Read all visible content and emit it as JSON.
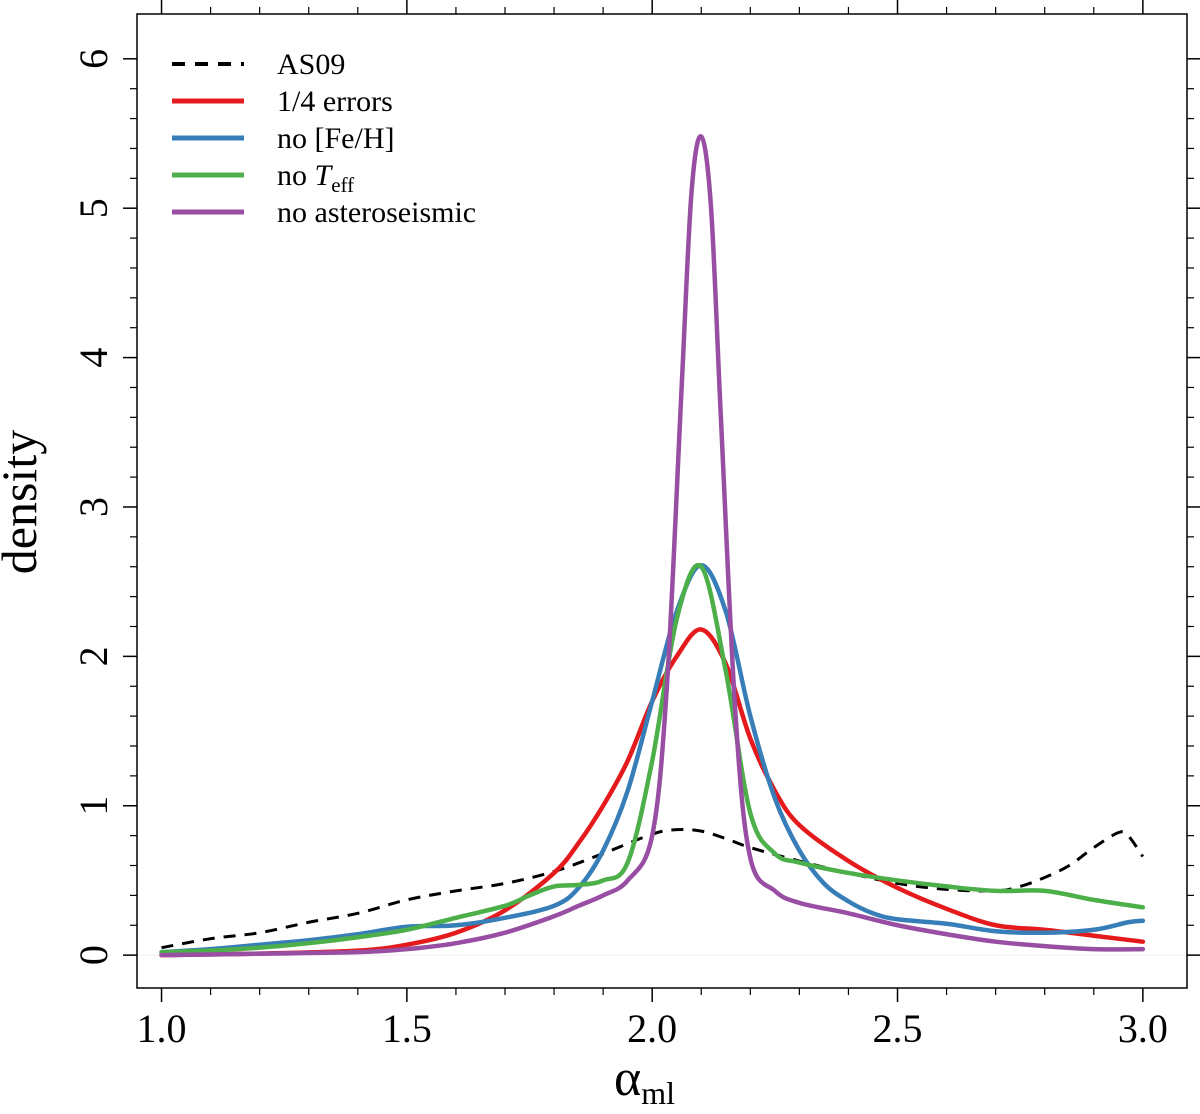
{
  "chart_data": {
    "type": "line",
    "title": "",
    "xlabel": "α",
    "xlabel_sub": "ml",
    "ylabel": "density",
    "xlim": [
      0.95,
      3.09
    ],
    "ylim": [
      -0.22,
      6.3
    ],
    "x_ticks": [
      {
        "value": 1.0,
        "label": "1.0"
      },
      {
        "value": 1.5,
        "label": "1.5"
      },
      {
        "value": 2.0,
        "label": "2.0"
      },
      {
        "value": 2.5,
        "label": "2.5"
      },
      {
        "value": 3.0,
        "label": "3.0"
      }
    ],
    "y_ticks": [
      {
        "value": 0,
        "label": "0"
      },
      {
        "value": 1,
        "label": "1"
      },
      {
        "value": 2,
        "label": "2"
      },
      {
        "value": 3,
        "label": "3"
      },
      {
        "value": 4,
        "label": "4"
      },
      {
        "value": 5,
        "label": "5"
      },
      {
        "value": 6,
        "label": "6"
      }
    ],
    "legend_position": "top-left",
    "series": [
      {
        "name": "AS09",
        "legend_main": "AS09",
        "legend_sub": "",
        "color": "#000000",
        "dashed": true,
        "x": [
          1.0,
          1.1,
          1.2,
          1.3,
          1.4,
          1.5,
          1.6,
          1.7,
          1.8,
          1.9,
          2.0,
          2.05,
          2.1,
          2.15,
          2.2,
          2.3,
          2.4,
          2.5,
          2.6,
          2.7,
          2.75,
          2.8,
          2.85,
          2.9,
          2.95,
          2.97,
          3.0
        ],
        "y": [
          0.05,
          0.11,
          0.15,
          0.22,
          0.28,
          0.37,
          0.43,
          0.48,
          0.56,
          0.68,
          0.81,
          0.84,
          0.83,
          0.78,
          0.72,
          0.63,
          0.55,
          0.48,
          0.44,
          0.43,
          0.46,
          0.52,
          0.6,
          0.72,
          0.82,
          0.8,
          0.66
        ]
      },
      {
        "name": "1/4 errors",
        "legend_main": "1/4 errors",
        "legend_sub": "",
        "color": "#e41a1c",
        "dashed": false,
        "x": [
          1.0,
          1.2,
          1.4,
          1.5,
          1.6,
          1.7,
          1.8,
          1.85,
          1.9,
          1.95,
          2.0,
          2.05,
          2.1,
          2.15,
          2.2,
          2.25,
          2.3,
          2.4,
          2.5,
          2.6,
          2.7,
          2.8,
          2.9,
          3.0
        ],
        "y": [
          0.0,
          0.01,
          0.03,
          0.07,
          0.15,
          0.3,
          0.55,
          0.75,
          1.0,
          1.3,
          1.7,
          2.0,
          2.18,
          1.95,
          1.45,
          1.1,
          0.87,
          0.63,
          0.45,
          0.31,
          0.2,
          0.17,
          0.13,
          0.09
        ]
      },
      {
        "name": "no [Fe/H]",
        "legend_main": "no [Fe/H]",
        "legend_sub": "",
        "color": "#377eb8",
        "dashed": false,
        "x": [
          1.0,
          1.1,
          1.2,
          1.3,
          1.4,
          1.5,
          1.6,
          1.7,
          1.8,
          1.85,
          1.9,
          1.95,
          2.0,
          2.05,
          2.1,
          2.15,
          2.2,
          2.25,
          2.3,
          2.35,
          2.4,
          2.45,
          2.5,
          2.6,
          2.7,
          2.8,
          2.9,
          2.97,
          3.0
        ],
        "y": [
          0.02,
          0.04,
          0.07,
          0.1,
          0.14,
          0.19,
          0.2,
          0.25,
          0.33,
          0.45,
          0.7,
          1.1,
          1.7,
          2.3,
          2.61,
          2.3,
          1.6,
          1.05,
          0.7,
          0.48,
          0.36,
          0.28,
          0.24,
          0.21,
          0.16,
          0.15,
          0.17,
          0.22,
          0.23
        ]
      },
      {
        "name": "no Teff",
        "legend_main": "no  T",
        "legend_sub": "eff",
        "color": "#4daf4a",
        "dashed": false,
        "x": [
          1.0,
          1.1,
          1.2,
          1.3,
          1.4,
          1.5,
          1.6,
          1.7,
          1.75,
          1.8,
          1.85,
          1.9,
          1.95,
          2.0,
          2.05,
          2.1,
          2.15,
          2.2,
          2.25,
          2.3,
          2.4,
          2.5,
          2.6,
          2.7,
          2.8,
          2.9,
          3.0
        ],
        "y": [
          0.02,
          0.03,
          0.05,
          0.08,
          0.12,
          0.17,
          0.25,
          0.33,
          0.4,
          0.46,
          0.47,
          0.5,
          0.62,
          1.3,
          2.25,
          2.6,
          1.9,
          0.95,
          0.68,
          0.62,
          0.55,
          0.5,
          0.46,
          0.43,
          0.43,
          0.37,
          0.32
        ]
      },
      {
        "name": "no asteroseismic",
        "legend_main": "no asteroseismic",
        "legend_sub": "",
        "color": "#984ea3",
        "dashed": false,
        "x": [
          1.0,
          1.2,
          1.4,
          1.5,
          1.6,
          1.7,
          1.8,
          1.85,
          1.9,
          1.95,
          2.0,
          2.03,
          2.06,
          2.08,
          2.1,
          2.12,
          2.14,
          2.17,
          2.2,
          2.25,
          2.3,
          2.4,
          2.5,
          2.6,
          2.7,
          2.8,
          2.9,
          3.0
        ],
        "y": [
          0.0,
          0.01,
          0.02,
          0.04,
          0.08,
          0.15,
          0.26,
          0.33,
          0.4,
          0.5,
          0.8,
          1.8,
          3.8,
          5.1,
          5.48,
          5.0,
          3.6,
          1.6,
          0.65,
          0.43,
          0.35,
          0.28,
          0.2,
          0.14,
          0.09,
          0.06,
          0.04,
          0.04
        ]
      }
    ]
  }
}
